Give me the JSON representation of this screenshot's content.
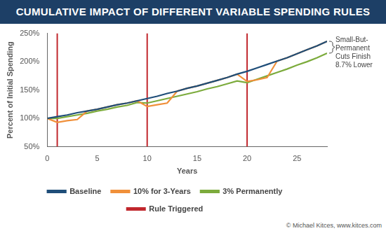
{
  "chart_data": {
    "type": "line",
    "title": "CUMULATIVE IMPACT OF DIFFERENT VARIABLE SPENDING RULES",
    "x_label": "Years",
    "y_label": "Percent of Initial Spending",
    "x": [
      0,
      1,
      2,
      3,
      4,
      5,
      6,
      7,
      8,
      9,
      10,
      11,
      12,
      13,
      14,
      15,
      16,
      17,
      18,
      19,
      20,
      21,
      22,
      23,
      24,
      25,
      26,
      27,
      28
    ],
    "series": [
      {
        "name": "Baseline",
        "color": "#1f4e79",
        "values": [
          100,
          103,
          106,
          110,
          113,
          116,
          120,
          124,
          127,
          131,
          135,
          139,
          144,
          148,
          153,
          157,
          162,
          167,
          172,
          178,
          183,
          189,
          195,
          201,
          207,
          214,
          221,
          228,
          236
        ]
      },
      {
        "name": "10% for 3-Years",
        "color": "#f0903a",
        "values": [
          100,
          93,
          96,
          98,
          113,
          116,
          120,
          124,
          127,
          131,
          121,
          124,
          127,
          148,
          153,
          157,
          162,
          167,
          172,
          178,
          165,
          168,
          172,
          201,
          207,
          214,
          221,
          228,
          236
        ]
      },
      {
        "name": "3% Permanently",
        "color": "#7cab3c",
        "values": [
          100,
          100,
          103,
          106,
          109,
          113,
          116,
          120,
          123,
          128,
          127,
          131,
          135,
          139,
          143,
          147,
          152,
          156,
          161,
          166,
          163,
          169,
          175,
          181,
          187,
          194,
          200,
          207,
          215
        ]
      },
      {
        "name": "Rule Triggered",
        "color": "#c1272d",
        "type": "vline",
        "x": [
          1,
          10,
          20
        ]
      }
    ],
    "xlim": [
      0,
      28
    ],
    "xticks": [
      0,
      5,
      10,
      15,
      20,
      25
    ],
    "ylim": [
      50,
      250
    ],
    "yticks": [
      {
        "value": 50,
        "label": "50%"
      },
      {
        "value": 100,
        "label": "100%"
      },
      {
        "value": 150,
        "label": "150%"
      },
      {
        "value": 200,
        "label": "200%"
      },
      {
        "value": 250,
        "label": "250%"
      }
    ],
    "grid": false,
    "legend": "bottom",
    "annotation": "Small-But-Permanent Cuts Finish 8.7% Lower",
    "credit": "© Michael Kitces, www.kitces.com"
  }
}
